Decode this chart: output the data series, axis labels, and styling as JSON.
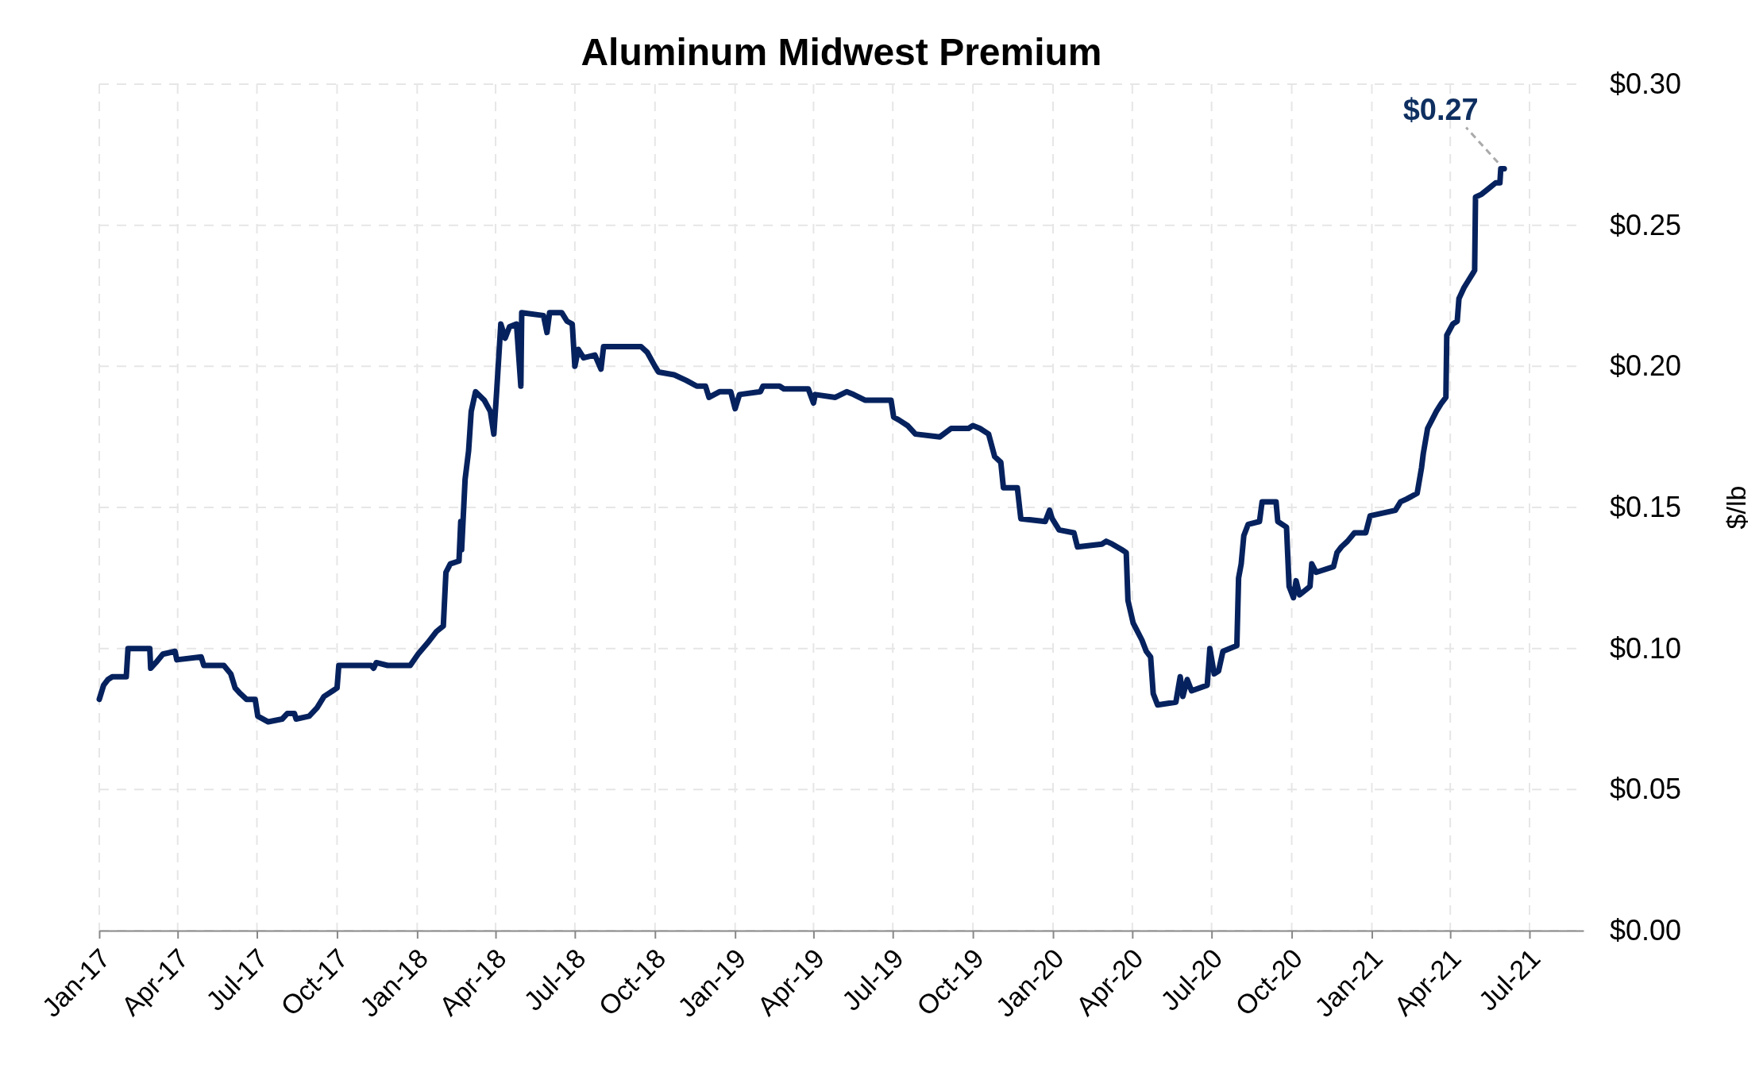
{
  "chart_data": {
    "type": "line",
    "title": "Aluminum Midwest Premium",
    "ylabel": "$/lb",
    "xlim": [
      "2017-01-01",
      "2021-09-01"
    ],
    "xticks": [
      {
        "value": "2017-01-01",
        "label": "Jan-17"
      },
      {
        "value": "2017-04-01",
        "label": "Apr-17"
      },
      {
        "value": "2017-07-01",
        "label": "Jul-17"
      },
      {
        "value": "2017-10-01",
        "label": "Oct-17"
      },
      {
        "value": "2018-01-01",
        "label": "Jan-18"
      },
      {
        "value": "2018-04-01",
        "label": "Apr-18"
      },
      {
        "value": "2018-07-01",
        "label": "Jul-18"
      },
      {
        "value": "2018-10-01",
        "label": "Oct-18"
      },
      {
        "value": "2019-01-01",
        "label": "Jan-19"
      },
      {
        "value": "2019-04-01",
        "label": "Apr-19"
      },
      {
        "value": "2019-07-01",
        "label": "Jul-19"
      },
      {
        "value": "2019-10-01",
        "label": "Oct-19"
      },
      {
        "value": "2020-01-01",
        "label": "Jan-20"
      },
      {
        "value": "2020-04-01",
        "label": "Apr-20"
      },
      {
        "value": "2020-07-01",
        "label": "Jul-20"
      },
      {
        "value": "2020-10-01",
        "label": "Oct-20"
      },
      {
        "value": "2021-01-01",
        "label": "Jan-21"
      },
      {
        "value": "2021-04-01",
        "label": "Apr-21"
      },
      {
        "value": "2021-07-01",
        "label": "Jul-21"
      }
    ],
    "ylim": [
      0,
      0.3
    ],
    "yticks": [
      {
        "value": 0,
        "label": "$0.00"
      },
      {
        "value": 0.05,
        "label": "$0.05"
      },
      {
        "value": 0.1,
        "label": "$0.10"
      },
      {
        "value": 0.15,
        "label": "$0.15"
      },
      {
        "value": 0.2,
        "label": "$0.20"
      },
      {
        "value": 0.25,
        "label": "$0.25"
      },
      {
        "value": 0.3,
        "label": "$0.30"
      }
    ],
    "grid": true,
    "line_style": "solid",
    "marker": "none",
    "annotations": [
      {
        "text": "$0.27",
        "x": "2021-06-02",
        "y": 0.27
      }
    ],
    "x": [
      "2017-01-01",
      "2017-01-06",
      "2017-01-11",
      "2017-01-16",
      "2017-02-01",
      "2017-02-03",
      "2017-02-28",
      "2017-03-01",
      "2017-03-07",
      "2017-03-15",
      "2017-03-29",
      "2017-03-31",
      "2017-04-28",
      "2017-05-01",
      "2017-05-24",
      "2017-06-01",
      "2017-06-06",
      "2017-06-12",
      "2017-06-19",
      "2017-06-29",
      "2017-07-02",
      "2017-07-14",
      "2017-07-30",
      "2017-08-05",
      "2017-08-13",
      "2017-08-15",
      "2017-08-30",
      "2017-09-08",
      "2017-09-16",
      "2017-09-26",
      "2017-10-01",
      "2017-10-03",
      "2017-11-09",
      "2017-11-12",
      "2017-11-15",
      "2017-11-28",
      "2017-12-24",
      "2018-01-02",
      "2018-01-13",
      "2018-01-23",
      "2018-01-31",
      "2018-02-03",
      "2018-02-08",
      "2018-02-18",
      "2018-02-20",
      "2018-02-21",
      "2018-02-25",
      "2018-03-01",
      "2018-03-04",
      "2018-03-09",
      "2018-03-19",
      "2018-03-26",
      "2018-03-30",
      "2018-04-02",
      "2018-04-07",
      "2018-04-12",
      "2018-04-17",
      "2018-04-25",
      "2018-04-30",
      "2018-05-01",
      "2018-05-26",
      "2018-05-30",
      "2018-06-02",
      "2018-06-16",
      "2018-06-22",
      "2018-06-28",
      "2018-07-01",
      "2018-07-05",
      "2018-07-11",
      "2018-07-24",
      "2018-07-31",
      "2018-08-03",
      "2018-09-15",
      "2018-09-22",
      "2018-10-01",
      "2018-10-05",
      "2018-10-23",
      "2018-11-06",
      "2018-11-18",
      "2018-11-28",
      "2018-12-02",
      "2018-12-14",
      "2018-12-27",
      "2019-01-01",
      "2019-01-06",
      "2019-01-30",
      "2019-02-02",
      "2019-02-21",
      "2019-02-26",
      "2019-03-26",
      "2019-04-01",
      "2019-04-03",
      "2019-04-26",
      "2019-05-09",
      "2019-05-17",
      "2019-05-30",
      "2019-06-29",
      "2019-07-02",
      "2019-07-08",
      "2019-07-18",
      "2019-07-27",
      "2019-08-24",
      "2019-09-06",
      "2019-09-26",
      "2019-10-01",
      "2019-10-09",
      "2019-10-19",
      "2019-10-26",
      "2019-11-02",
      "2019-11-05",
      "2019-11-21",
      "2019-11-25",
      "2019-12-23",
      "2019-12-28",
      "2019-12-31",
      "2020-01-08",
      "2020-01-25",
      "2020-01-29",
      "2020-02-26",
      "2020-03-02",
      "2020-03-09",
      "2020-03-20",
      "2020-03-25",
      "2020-03-27",
      "2020-04-02",
      "2020-04-07",
      "2020-04-12",
      "2020-04-17",
      "2020-04-22",
      "2020-04-25",
      "2020-04-30",
      "2020-05-21",
      "2020-05-26",
      "2020-05-29",
      "2020-06-03",
      "2020-06-08",
      "2020-06-26",
      "2020-06-29",
      "2020-07-04",
      "2020-07-09",
      "2020-07-14",
      "2020-07-30",
      "2020-08-01",
      "2020-08-04",
      "2020-08-07",
      "2020-08-12",
      "2020-08-25",
      "2020-08-28",
      "2020-09-13",
      "2020-09-15",
      "2020-09-25",
      "2020-09-28",
      "2020-10-03",
      "2020-10-06",
      "2020-10-10",
      "2020-10-22",
      "2020-10-24",
      "2020-10-29",
      "2020-11-18",
      "2020-11-22",
      "2020-11-27",
      "2020-12-04",
      "2020-12-12",
      "2020-12-25",
      "2020-12-30",
      "2021-01-28",
      "2021-02-03",
      "2021-02-10",
      "2021-02-22",
      "2021-02-27",
      "2021-03-01",
      "2021-03-06",
      "2021-03-11",
      "2021-03-16",
      "2021-03-22",
      "2021-03-27",
      "2021-03-28",
      "2021-04-04",
      "2021-04-09",
      "2021-04-11",
      "2021-04-17",
      "2021-04-21",
      "2021-04-27",
      "2021-04-29",
      "2021-04-30",
      "2021-05-07",
      "2021-05-15",
      "2021-05-23",
      "2021-05-28",
      "2021-05-29",
      "2021-06-02"
    ],
    "series": [
      {
        "color": "#06225e",
        "values": [
          0.082,
          0.087,
          0.089,
          0.09,
          0.09,
          0.1,
          0.1,
          0.093,
          0.095,
          0.098,
          0.099,
          0.096,
          0.097,
          0.094,
          0.094,
          0.091,
          0.086,
          0.084,
          0.082,
          0.082,
          0.076,
          0.074,
          0.075,
          0.077,
          0.077,
          0.075,
          0.076,
          0.079,
          0.083,
          0.085,
          0.086,
          0.094,
          0.094,
          0.093,
          0.095,
          0.094,
          0.094,
          0.098,
          0.102,
          0.106,
          0.108,
          0.127,
          0.13,
          0.131,
          0.145,
          0.135,
          0.16,
          0.17,
          0.184,
          0.191,
          0.188,
          0.184,
          0.176,
          0.19,
          0.215,
          0.21,
          0.214,
          0.215,
          0.193,
          0.219,
          0.218,
          0.212,
          0.219,
          0.219,
          0.216,
          0.215,
          0.2,
          0.206,
          0.203,
          0.204,
          0.199,
          0.207,
          0.207,
          0.205,
          0.2,
          0.198,
          0.197,
          0.195,
          0.193,
          0.193,
          0.189,
          0.191,
          0.191,
          0.185,
          0.19,
          0.191,
          0.193,
          0.193,
          0.192,
          0.192,
          0.187,
          0.19,
          0.189,
          0.191,
          0.19,
          0.188,
          0.188,
          0.182,
          0.181,
          0.179,
          0.176,
          0.175,
          0.178,
          0.178,
          0.179,
          0.178,
          0.176,
          0.168,
          0.166,
          0.157,
          0.157,
          0.146,
          0.145,
          0.149,
          0.146,
          0.142,
          0.141,
          0.136,
          0.137,
          0.138,
          0.137,
          0.135,
          0.134,
          0.117,
          0.109,
          0.106,
          0.103,
          0.099,
          0.097,
          0.084,
          0.08,
          0.081,
          0.09,
          0.083,
          0.089,
          0.085,
          0.087,
          0.1,
          0.091,
          0.092,
          0.099,
          0.101,
          0.125,
          0.13,
          0.14,
          0.144,
          0.145,
          0.152,
          0.152,
          0.145,
          0.143,
          0.122,
          0.118,
          0.124,
          0.119,
          0.122,
          0.13,
          0.127,
          0.129,
          0.134,
          0.136,
          0.138,
          0.141,
          0.141,
          0.147,
          0.149,
          0.152,
          0.153,
          0.155,
          0.164,
          0.169,
          0.178,
          0.181,
          0.184,
          0.187,
          0.189,
          0.211,
          0.215,
          0.216,
          0.224,
          0.228,
          0.23,
          0.233,
          0.234,
          0.26,
          0.261,
          0.263,
          0.265,
          0.265,
          0.27,
          0.27
        ]
      }
    ]
  }
}
